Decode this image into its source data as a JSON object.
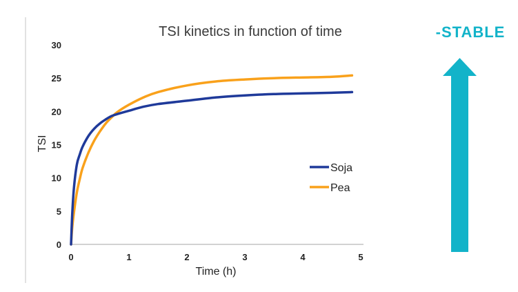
{
  "colors": {
    "soja": "#1f3a9a",
    "pea": "#f9a11b",
    "accent": "#12b3c9",
    "axis": "#b8b8b8",
    "divider": "#d9d9d9"
  },
  "stable_label": "-STABLE",
  "chart_data": {
    "type": "line",
    "title": "TSI kinetics in function of time",
    "xlabel": "Time (h)",
    "ylabel": "TSI",
    "xlim": [
      0,
      5
    ],
    "ylim": [
      0,
      30
    ],
    "x_ticks": [
      "0",
      "1",
      "2",
      "3",
      "4",
      "5"
    ],
    "y_ticks": [
      "0",
      "5",
      "10",
      "15",
      "20",
      "25",
      "30"
    ],
    "grid": false,
    "legend_position": "right-middle",
    "series": [
      {
        "name": "Soja",
        "color_key": "soja",
        "x": [
          0,
          0.02,
          0.05,
          0.1,
          0.15,
          0.2,
          0.3,
          0.4,
          0.5,
          0.6,
          0.7,
          0.8,
          1.0,
          1.25,
          1.5,
          2.0,
          2.5,
          3.0,
          3.5,
          4.0,
          4.5,
          4.85
        ],
        "y": [
          0,
          4.5,
          8.5,
          12.0,
          13.5,
          14.7,
          16.3,
          17.4,
          18.2,
          18.8,
          19.3,
          19.6,
          20.1,
          20.7,
          21.1,
          21.6,
          22.1,
          22.4,
          22.6,
          22.7,
          22.8,
          22.9
        ]
      },
      {
        "name": "Pea",
        "color_key": "pea",
        "x": [
          0,
          0.02,
          0.05,
          0.1,
          0.15,
          0.2,
          0.3,
          0.4,
          0.5,
          0.6,
          0.7,
          0.8,
          1.0,
          1.25,
          1.5,
          2.0,
          2.5,
          3.0,
          3.5,
          4.0,
          4.5,
          4.85
        ],
        "y": [
          0,
          2.5,
          4.8,
          7.8,
          9.8,
          11.5,
          13.8,
          15.6,
          17.0,
          18.2,
          19.1,
          19.9,
          21.0,
          22.1,
          22.9,
          23.9,
          24.5,
          24.8,
          25.0,
          25.1,
          25.2,
          25.4
        ]
      }
    ]
  }
}
